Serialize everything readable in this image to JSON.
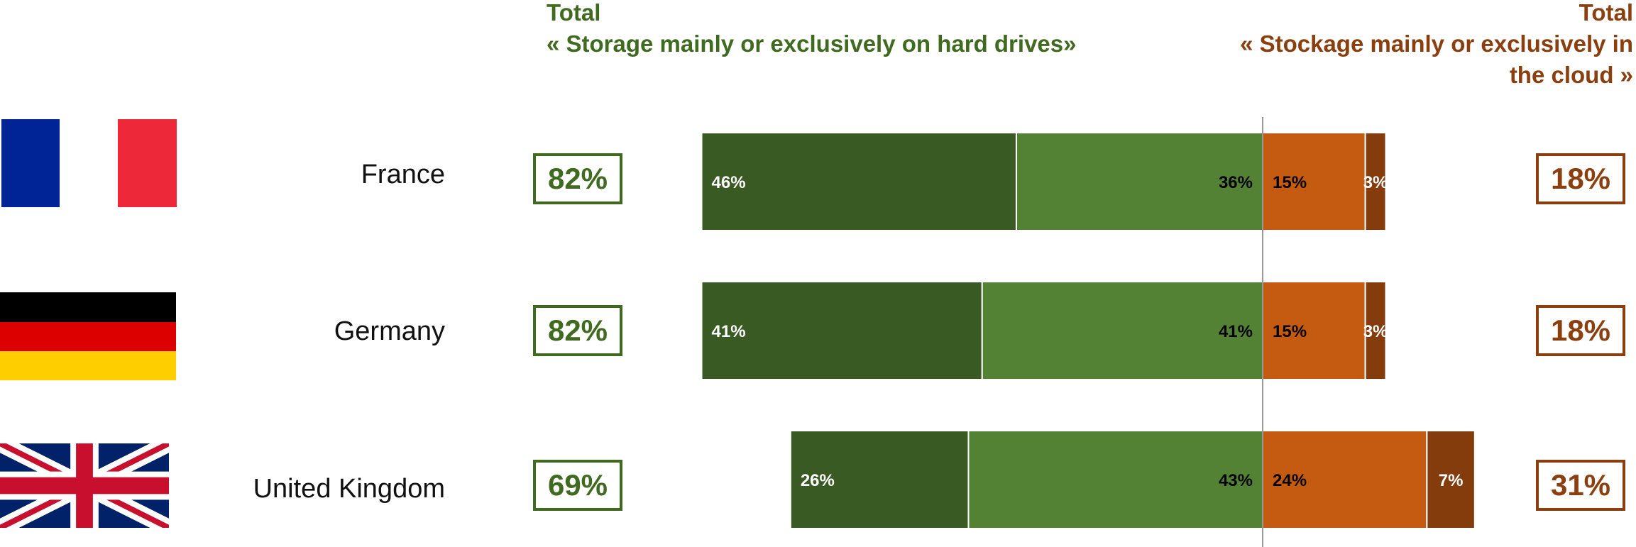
{
  "header": {
    "left_title": "Total",
    "left_subtitle": "« Storage mainly or exclusively on hard drives»",
    "right_title": "Total",
    "right_subtitle_line1": "« Stockage mainly or exclusively in",
    "right_subtitle_line2": "the cloud »"
  },
  "colors": {
    "dark_green": "#3a5a24",
    "light_green": "#548235",
    "orange": "#c55a11",
    "brown": "#843c0c",
    "total_left": "#3f6a1f",
    "total_right": "#8b3f0f"
  },
  "chart_data": {
    "type": "bar",
    "orientation": "horizontal-diverging",
    "categories": [
      "France",
      "Germany",
      "United Kingdom"
    ],
    "series": [
      {
        "values": [
          46,
          41,
          26
        ],
        "color": "#3a5a24",
        "side": "left"
      },
      {
        "values": [
          36,
          41,
          43
        ],
        "color": "#548235",
        "side": "left"
      },
      {
        "values": [
          15,
          15,
          24
        ],
        "color": "#c55a11",
        "side": "right"
      },
      {
        "values": [
          3,
          3,
          7
        ],
        "color": "#843c0c",
        "side": "right"
      }
    ],
    "labels": [
      [
        "46%",
        "36%",
        "15%",
        "3%"
      ],
      [
        "41%",
        "41%",
        "15%",
        "3%"
      ],
      [
        "26%",
        "43%",
        "24%",
        "7%"
      ]
    ],
    "totals_left": [
      "82%",
      "82%",
      "69%"
    ],
    "totals_right": [
      "18%",
      "18%",
      "31%"
    ]
  },
  "rows": [
    {
      "country": "France",
      "flag": "france-flag",
      "total_left": "82%",
      "total_right": "18%"
    },
    {
      "country": "Germany",
      "flag": "germany-flag",
      "total_left": "82%",
      "total_right": "18%"
    },
    {
      "country": "United Kingdom",
      "flag": "uk-flag",
      "total_left": "69%",
      "total_right": "31%"
    }
  ]
}
